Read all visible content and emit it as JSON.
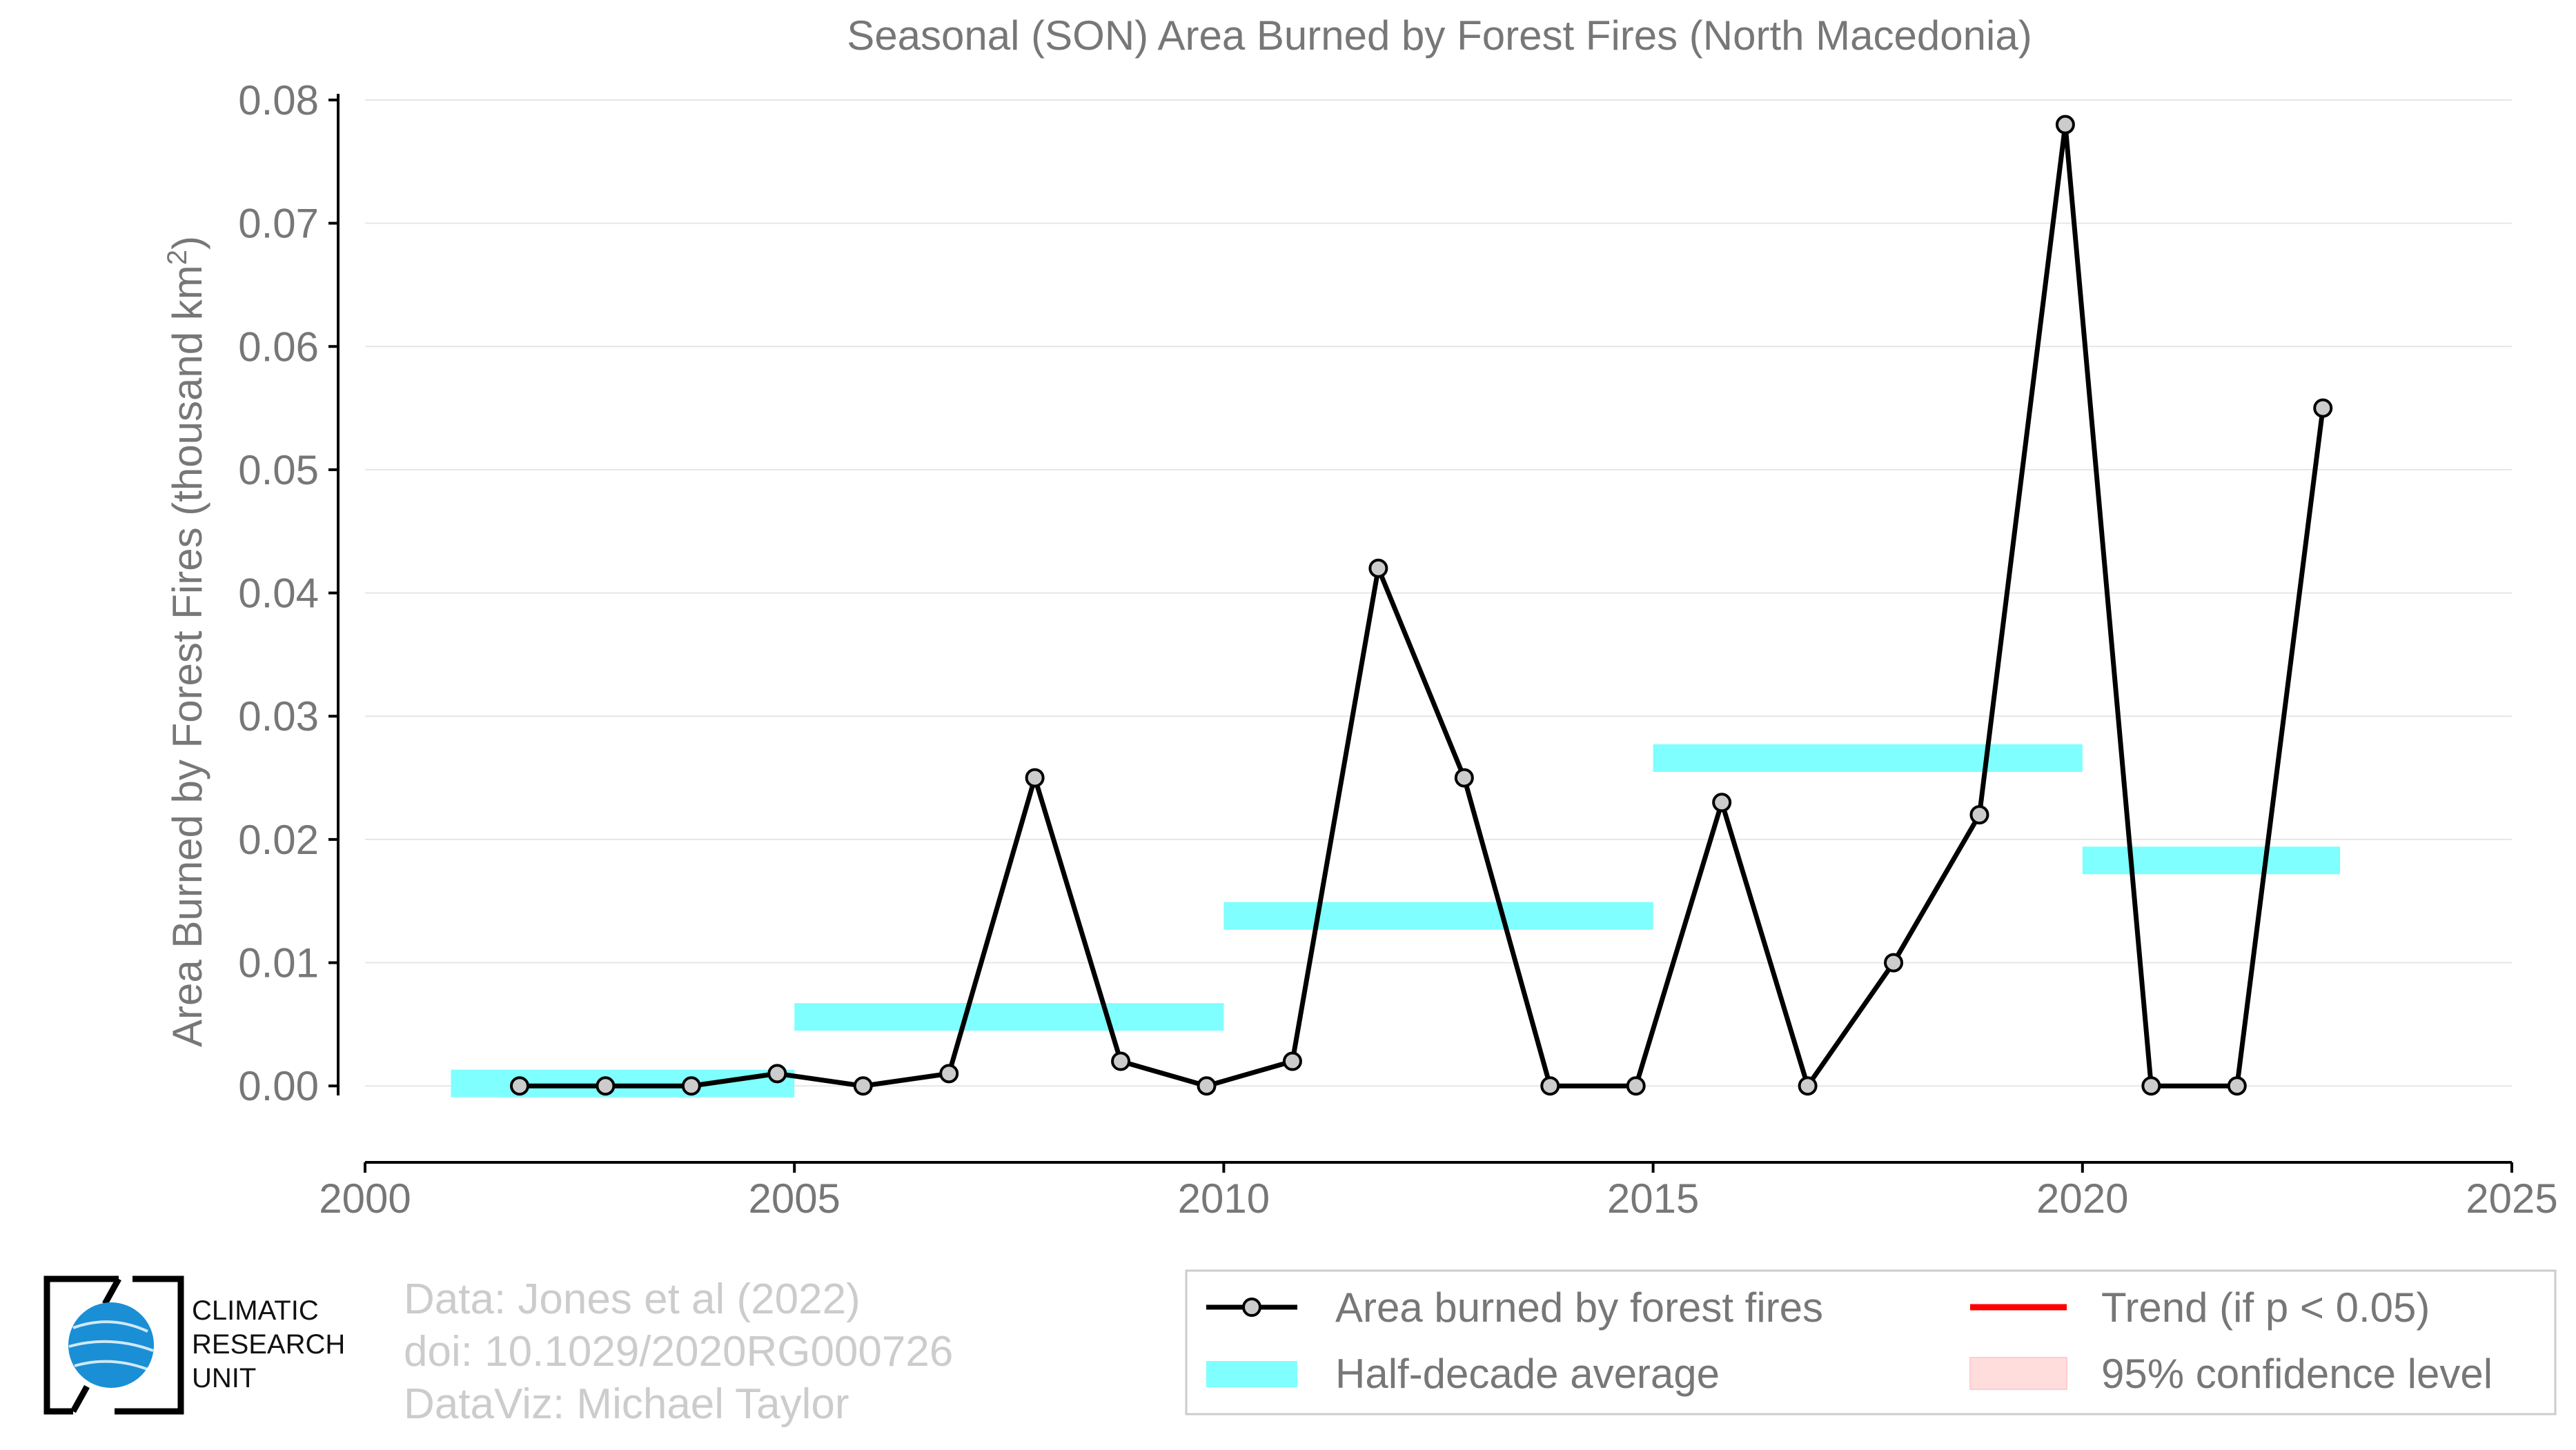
{
  "chart_data": {
    "type": "line",
    "title": "Seasonal (SON) Area Burned by Forest Fires (North Macedonia)",
    "xlabel": "",
    "ylabel": "Area Burned by Forest Fires (thousand km",
    "ylabel_sup": "2",
    "ylabel_end": ")",
    "xlim": [
      2000,
      2025
    ],
    "ylim": [
      -0.0062,
      0.0805
    ],
    "xticks": [
      2000,
      2005,
      2010,
      2015,
      2020,
      2025
    ],
    "xtick_labels": [
      "2000",
      "2005",
      "2010",
      "2015",
      "2020",
      "2025"
    ],
    "yticks": [
      0.0,
      0.01,
      0.02,
      0.03,
      0.04,
      0.05,
      0.06,
      0.07,
      0.08
    ],
    "ytick_labels": [
      "0.00",
      "0.01",
      "0.02",
      "0.03",
      "0.04",
      "0.05",
      "0.06",
      "0.07",
      "0.08"
    ],
    "grid": "horizontal",
    "series": [
      {
        "name": "Area burned by forest fires",
        "color": "#000000",
        "marker_fill": "#cccccc",
        "x": [
          2001.8,
          2002.8,
          2003.8,
          2004.8,
          2005.8,
          2006.8,
          2007.8,
          2008.8,
          2009.8,
          2010.8,
          2011.8,
          2012.8,
          2013.8,
          2014.8,
          2015.8,
          2016.8,
          2017.8,
          2018.8,
          2019.8,
          2020.8,
          2021.8,
          2022.8
        ],
        "values": [
          0.0,
          0.0,
          0.0,
          0.001,
          0.0,
          0.001,
          0.025,
          0.002,
          0.0,
          0.002,
          0.042,
          0.025,
          0.0,
          0.0,
          0.023,
          0.0,
          0.01,
          0.022,
          0.078,
          0.0,
          0.0,
          0.055
        ]
      }
    ],
    "half_decade_average": {
      "name": "Half-decade average",
      "color": "#7fffff",
      "segments": [
        {
          "x_start": 2001,
          "x_end": 2005,
          "value": 0.0002
        },
        {
          "x_start": 2005,
          "x_end": 2010,
          "value": 0.0056
        },
        {
          "x_start": 2010,
          "x_end": 2015,
          "value": 0.0138
        },
        {
          "x_start": 2015,
          "x_end": 2020,
          "value": 0.0266
        },
        {
          "x_start": 2020,
          "x_end": 2023,
          "value": 0.0183
        }
      ]
    },
    "legend": {
      "position": "bottom-right",
      "entries": [
        {
          "label": "Area burned by forest fires",
          "kind": "line-marker",
          "color": "#000000"
        },
        {
          "label": "Trend (if p < 0.05)",
          "kind": "line",
          "color": "#ff0000"
        },
        {
          "label": "Half-decade average",
          "kind": "band",
          "color": "#7fffff"
        },
        {
          "label": "95% confidence level",
          "kind": "patch",
          "color": "#ffdddd"
        }
      ]
    }
  },
  "credits": {
    "line1": "Data: Jones et al (2022)",
    "line2": "doi: 10.1029/2020RG000726",
    "line3": "DataViz: Michael Taylor"
  },
  "logo": {
    "line1": "CLIMATIC",
    "line2": "RESEARCH",
    "line3": "UNIT"
  }
}
